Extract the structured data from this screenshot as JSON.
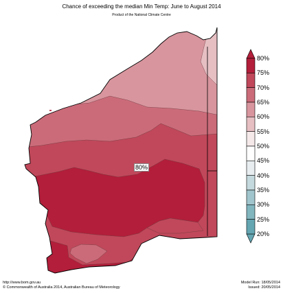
{
  "title": "Chance of exceeding the median Min Temp: June to August 2014",
  "subtitle": "Product of the National Climate Centre",
  "map_label": "80%",
  "legend": {
    "labels": [
      "80%",
      "75%",
      "70%",
      "65%",
      "60%",
      "55%",
      "50%",
      "45%",
      "40%",
      "35%",
      "30%",
      "25%",
      "20%"
    ],
    "colors": [
      "#b31e3a",
      "#c0485a",
      "#cb6b79",
      "#d8959d",
      "#e6bfc3",
      "#f5e9ea",
      "#ffffff",
      "#e8eef0",
      "#c4d9dd",
      "#a1c5cc",
      "#82b6bf",
      "#64a6b2"
    ]
  },
  "footer": {
    "url": "http://www.bom.gov.au",
    "copyright": "©  Commonwealth of Australia 2014, Australian Bureau of Meteorology",
    "model_run": "Model Run: 18/05/2014",
    "issued": "Issued: 20/05/2014"
  }
}
